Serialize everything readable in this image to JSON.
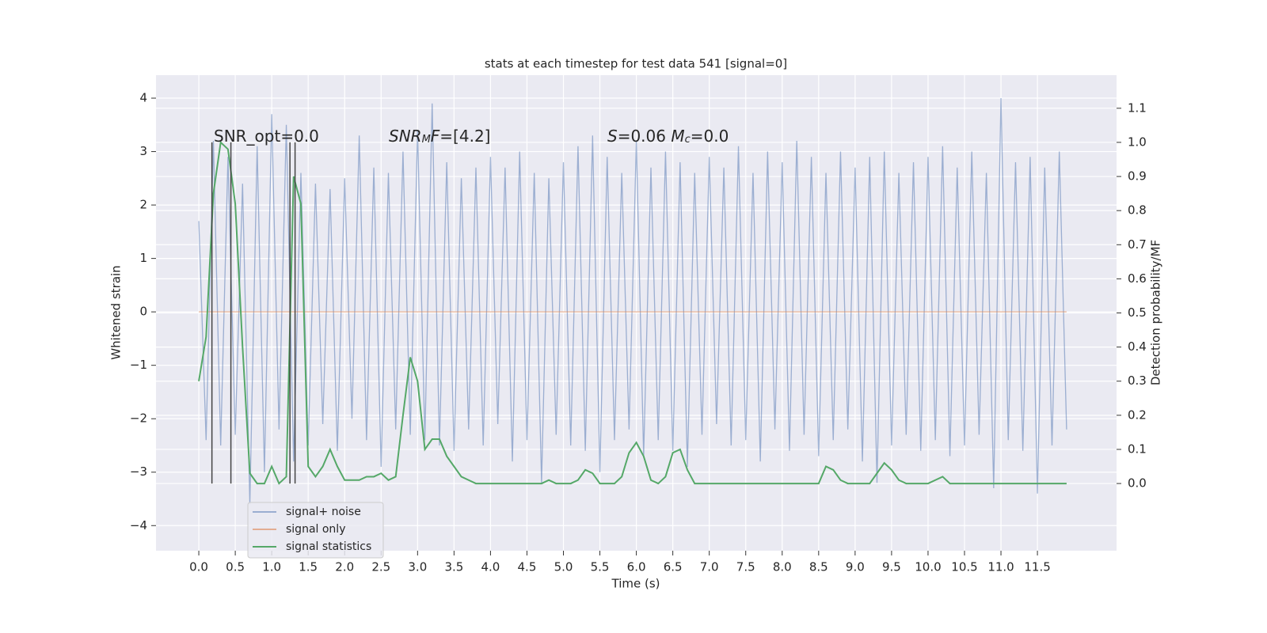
{
  "chart_data": {
    "type": "line",
    "title": "stats at each timestep for test data 541 [signal=0]",
    "xlabel": "Time (s)",
    "ylabel": "Whitened strain",
    "y2label": "Detection probability/MF",
    "annotations": [
      {
        "parts": [
          "SNR_opt=0.0"
        ],
        "styles": [
          "normal"
        ]
      },
      {
        "parts": [
          "SNR",
          "M",
          "F",
          "=[4.2]"
        ],
        "styles": [
          "italic",
          "sub",
          "italic",
          "normal"
        ]
      },
      {
        "parts": [
          "S",
          "=0.06   ",
          "M",
          "c",
          "=0.0"
        ],
        "styles": [
          "italic",
          "normal",
          "italic",
          "sub",
          "normal"
        ]
      }
    ],
    "x": [
      0.0,
      0.1,
      0.2,
      0.3,
      0.4,
      0.5,
      0.6,
      0.7,
      0.8,
      0.9,
      1.0,
      1.1,
      1.2,
      1.3,
      1.4,
      1.5,
      1.6,
      1.7,
      1.8,
      1.9,
      2.0,
      2.1,
      2.2,
      2.3,
      2.4,
      2.5,
      2.6,
      2.7,
      2.8,
      2.9,
      3.0,
      3.1,
      3.2,
      3.3,
      3.4,
      3.5,
      3.6,
      3.7,
      3.8,
      3.9,
      4.0,
      4.1,
      4.2,
      4.3,
      4.4,
      4.5,
      4.6,
      4.7,
      4.8,
      4.9,
      5.0,
      5.1,
      5.2,
      5.3,
      5.4,
      5.5,
      5.6,
      5.7,
      5.8,
      5.9,
      6.0,
      6.1,
      6.2,
      6.3,
      6.4,
      6.5,
      6.6,
      6.7,
      6.8,
      6.9,
      7.0,
      7.1,
      7.2,
      7.3,
      7.4,
      7.5,
      7.6,
      7.7,
      7.8,
      7.9,
      8.0,
      8.1,
      8.2,
      8.3,
      8.4,
      8.5,
      8.6,
      8.7,
      8.8,
      8.9,
      9.0,
      9.1,
      9.2,
      9.3,
      9.4,
      9.5,
      9.6,
      9.7,
      9.8,
      9.9,
      10.0,
      10.1,
      10.2,
      10.3,
      10.4,
      10.5,
      10.6,
      10.7,
      10.8,
      10.9,
      11.0,
      11.1,
      11.2,
      11.3,
      11.4,
      11.5,
      11.6,
      11.7,
      11.8,
      11.9
    ],
    "series": [
      {
        "name": "signal+ noise",
        "color": "#4c72b0",
        "opacity": 0.5,
        "values": [
          1.7,
          -2.4,
          3.2,
          -2.5,
          2.9,
          -2.3,
          2.4,
          -3.6,
          3.1,
          -3.0,
          3.7,
          -2.2,
          3.5,
          -2.8,
          2.6,
          -2.5,
          2.4,
          -2.1,
          2.3,
          -2.6,
          2.5,
          -2.0,
          3.3,
          -2.4,
          2.7,
          -2.9,
          2.6,
          -2.2,
          3.0,
          -2.3,
          3.4,
          -2.4,
          3.9,
          -2.5,
          2.8,
          -2.6,
          2.5,
          -2.2,
          2.7,
          -2.5,
          2.9,
          -2.1,
          2.7,
          -2.8,
          3.0,
          -2.4,
          2.6,
          -3.2,
          2.5,
          -2.3,
          2.8,
          -2.5,
          3.1,
          -2.6,
          3.3,
          -3.0,
          2.9,
          -2.4,
          2.6,
          -2.2,
          3.2,
          -2.7,
          2.7,
          -2.4,
          3.0,
          -2.6,
          2.8,
          -2.9,
          2.6,
          -2.3,
          2.9,
          -2.1,
          2.7,
          -2.5,
          3.1,
          -2.4,
          2.6,
          -2.8,
          3.0,
          -2.2,
          2.8,
          -2.6,
          3.2,
          -2.3,
          2.9,
          -2.7,
          2.6,
          -2.4,
          3.0,
          -2.2,
          2.7,
          -2.8,
          2.9,
          -3.2,
          3.0,
          -2.5,
          2.6,
          -2.3,
          2.8,
          -2.6,
          2.9,
          -2.4,
          3.1,
          -2.7,
          2.7,
          -2.5,
          3.0,
          -2.3,
          2.6,
          -3.3,
          4.0,
          -2.4,
          2.8,
          -2.6,
          2.9,
          -3.4,
          2.7,
          -2.5,
          3.0,
          -2.2
        ]
      },
      {
        "name": "signal only",
        "color": "#dd8452",
        "opacity": 0.6,
        "values": [
          0,
          0,
          0,
          0,
          0,
          0,
          0,
          0,
          0,
          0,
          0,
          0,
          0,
          0,
          0,
          0,
          0,
          0,
          0,
          0,
          0,
          0,
          0,
          0,
          0,
          0,
          0,
          0,
          0,
          0,
          0,
          0,
          0,
          0,
          0,
          0,
          0,
          0,
          0,
          0,
          0,
          0,
          0,
          0,
          0,
          0,
          0,
          0,
          0,
          0,
          0,
          0,
          0,
          0,
          0,
          0,
          0,
          0,
          0,
          0,
          0,
          0,
          0,
          0,
          0,
          0,
          0,
          0,
          0,
          0,
          0,
          0,
          0,
          0,
          0,
          0,
          0,
          0,
          0,
          0,
          0,
          0,
          0,
          0,
          0,
          0,
          0,
          0,
          0,
          0,
          0,
          0,
          0,
          0,
          0,
          0,
          0,
          0,
          0,
          0,
          0,
          0,
          0,
          0,
          0,
          0,
          0,
          0,
          0,
          0,
          0,
          0,
          0,
          0,
          0,
          0,
          0,
          0,
          0,
          0
        ]
      },
      {
        "name": "signal statistics",
        "color": "#55a868",
        "opacity": 1,
        "axis": "y2",
        "values": [
          0.3,
          0.43,
          0.85,
          1.0,
          0.98,
          0.82,
          0.4,
          0.03,
          0.0,
          0.0,
          0.05,
          0.0,
          0.02,
          0.9,
          0.82,
          0.05,
          0.02,
          0.05,
          0.1,
          0.05,
          0.01,
          0.01,
          0.01,
          0.02,
          0.02,
          0.03,
          0.01,
          0.02,
          0.2,
          0.37,
          0.3,
          0.1,
          0.13,
          0.13,
          0.08,
          0.05,
          0.02,
          0.01,
          0.0,
          0.0,
          0.0,
          0.0,
          0.0,
          0.0,
          0.0,
          0.0,
          0.0,
          0.0,
          0.01,
          0.0,
          0.0,
          0.0,
          0.01,
          0.04,
          0.03,
          0.0,
          0.0,
          0.0,
          0.02,
          0.09,
          0.12,
          0.08,
          0.01,
          0.0,
          0.02,
          0.09,
          0.1,
          0.04,
          0.0,
          0.0,
          0.0,
          0.0,
          0.0,
          0.0,
          0.0,
          0.0,
          0.0,
          0.0,
          0.0,
          0.0,
          0.0,
          0.0,
          0.0,
          0.0,
          0.0,
          0.0,
          0.05,
          0.04,
          0.01,
          0.0,
          0.0,
          0.0,
          0.0,
          0.03,
          0.06,
          0.04,
          0.01,
          0.0,
          0.0,
          0.0,
          0.0,
          0.01,
          0.02,
          0.0,
          0.0,
          0.0,
          0.0,
          0.0,
          0.0,
          0.0,
          0.0,
          0.0,
          0.0,
          0.0,
          0.0,
          0.0,
          0.0,
          0.0,
          0.0,
          0.0
        ]
      }
    ],
    "vlines": {
      "x": [
        0.18,
        0.44,
        1.25,
        1.32
      ],
      "ymin": 0,
      "ymax": 1,
      "axis": "y2",
      "color": "#444444"
    },
    "xlim": [
      -0.587,
      12.585
    ],
    "ylim": [
      -4.47,
      4.43
    ],
    "y2lim": [
      -0.197,
      1.197
    ],
    "xticks": [
      {
        "value": 0,
        "label": "0.0"
      },
      0.5,
      {
        "value": 1,
        "label": "1.0"
      },
      1.5,
      {
        "value": 2,
        "label": "2.0"
      },
      2.5,
      {
        "value": 3,
        "label": "3.0"
      },
      3.5,
      {
        "value": 4,
        "label": "4.0"
      },
      4.5,
      {
        "value": 5,
        "label": "5.0"
      },
      5.5,
      {
        "value": 6,
        "label": "6.0"
      },
      6.5,
      {
        "value": 7,
        "label": "7.0"
      },
      7.5,
      {
        "value": 8,
        "label": "8.0"
      },
      8.5,
      {
        "value": 9,
        "label": "9.0"
      },
      9.5,
      {
        "value": 10,
        "label": "10.0"
      },
      10.5,
      {
        "value": 11,
        "label": "11.0"
      },
      11.5
    ],
    "yticks": [
      {
        "value": -4,
        "label": "−4"
      },
      {
        "value": -3,
        "label": "−3"
      },
      {
        "value": -2,
        "label": "−2"
      },
      {
        "value": -1,
        "label": "−1"
      },
      0,
      1,
      2,
      3,
      4
    ],
    "y2ticks": [
      {
        "value": 0,
        "label": "0.0"
      },
      0.1,
      0.2,
      0.3,
      0.4,
      0.5,
      0.6,
      0.7,
      0.8,
      0.9,
      {
        "value": 1,
        "label": "1.0"
      },
      1.1
    ],
    "grid": true,
    "legend": "lower left"
  }
}
